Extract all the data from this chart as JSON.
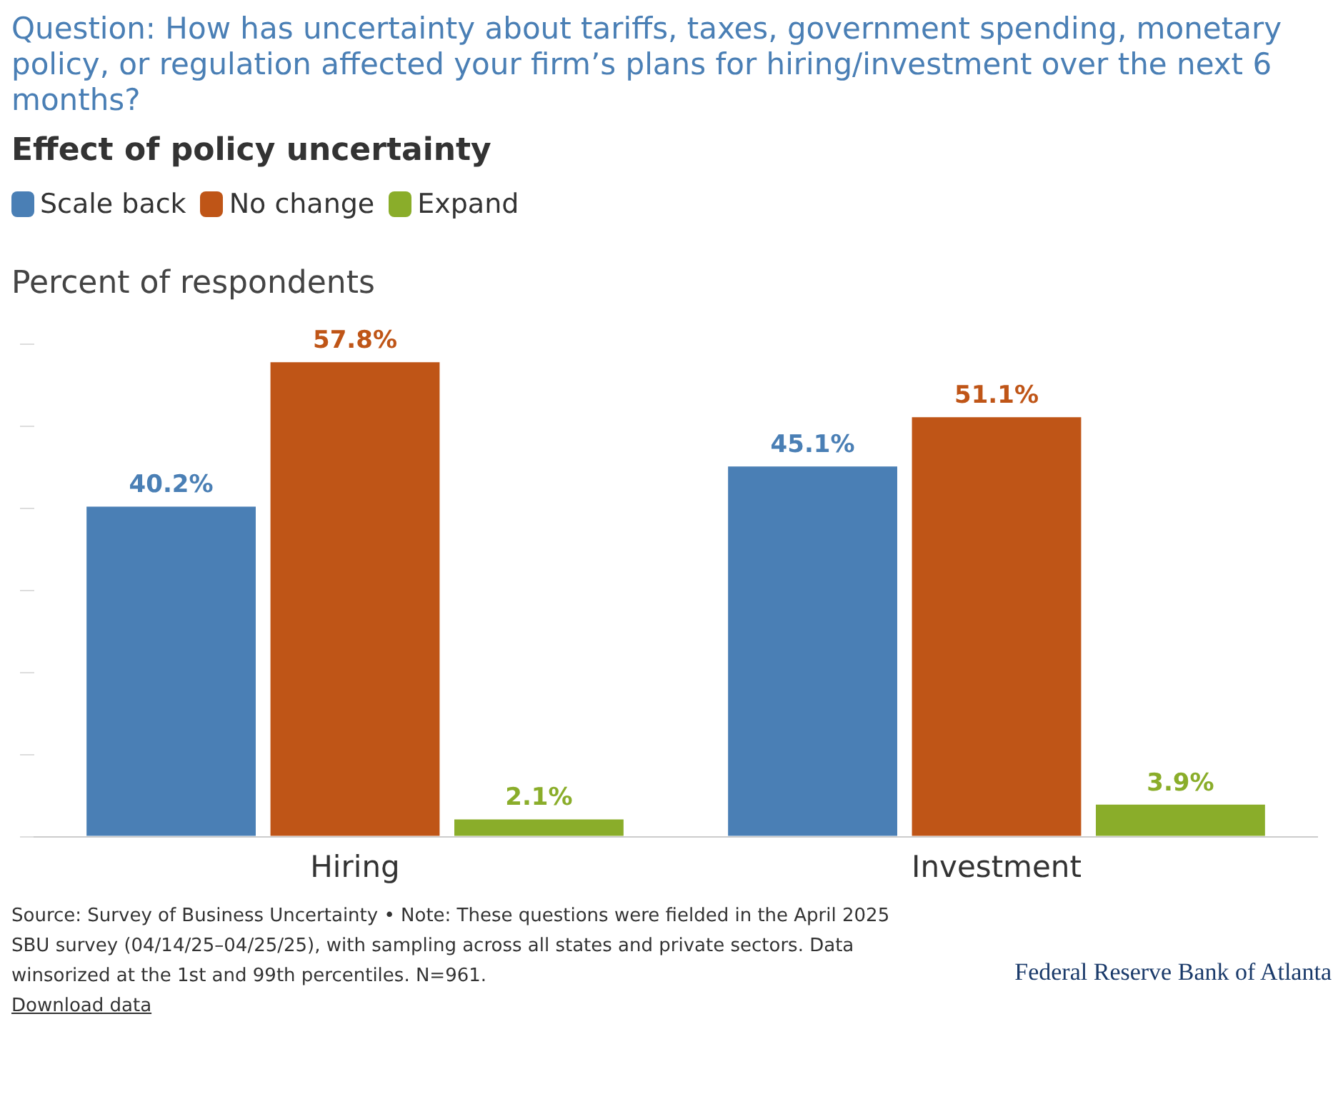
{
  "chart_data": {
    "type": "bar",
    "title": "Question: How has uncertainty about tariffs, taxes, government spending, monetary policy, or regulation affected your firm’s plans for hiring/investment over the next 6 months?",
    "subtitle": "Effect of policy uncertainty",
    "ylabel": "Percent of respondents",
    "categories": [
      "Hiring",
      "Investment"
    ],
    "series": [
      {
        "name": "Scale back",
        "color": "#4a7fb5",
        "values": [
          40.2,
          45.1
        ],
        "value_labels": [
          "40.2%",
          "45.1%"
        ]
      },
      {
        "name": "No change",
        "color": "#bf5517",
        "values": [
          57.8,
          51.1
        ],
        "value_labels": [
          "57.8%",
          "51.1%"
        ]
      },
      {
        "name": "Expand",
        "color": "#8aad2a",
        "values": [
          2.1,
          3.9
        ],
        "value_labels": [
          "2.1%",
          "3.9%"
        ]
      }
    ],
    "tick_labels": "x",
    "legend": "top left",
    "grid": false,
    "annotations": [
      "Source: Survey of Business Uncertainty • Note: These questions were fielded in the April 2025 SBU survey (04/14/25–04/25/25), with sampling across all states and private sectors. Data winsorized at the 1st and 99th percentiles. N=961.",
      "Download data",
      "Federal Reserve Bank of Atlanta"
    ]
  }
}
